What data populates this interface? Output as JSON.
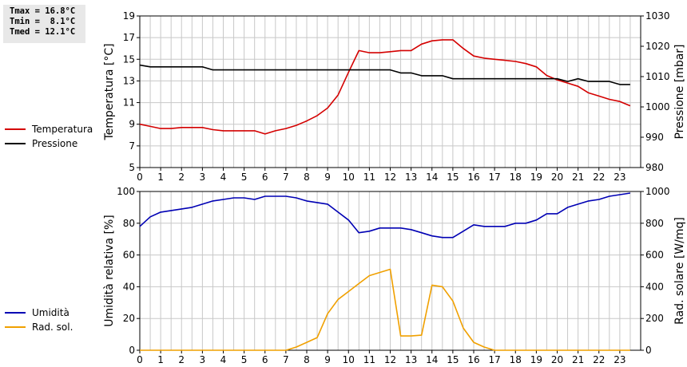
{
  "stats": {
    "tmax": "Tmax = 16.8°C",
    "tmin": "Tmin =  8.1°C",
    "tmed": "Tmed = 12.1°C"
  },
  "colors": {
    "temperatura": "#d40000",
    "pressione": "#000000",
    "umidita": "#0000b4",
    "rad_sol": "#f0a000",
    "grid": "#c8c8c8"
  },
  "chart_data": [
    {
      "type": "line",
      "x_ticks": [
        "0",
        "1",
        "2",
        "3",
        "4",
        "5",
        "6",
        "7",
        "8",
        "9",
        "10",
        "11",
        "12",
        "13",
        "14",
        "15",
        "16",
        "17",
        "18",
        "19",
        "20",
        "21",
        "22",
        "23"
      ],
      "xlim": [
        0,
        24
      ],
      "ylabel": "Temperatura [°C]",
      "y2label": "Pressione [mbar]",
      "ylim": [
        5,
        19
      ],
      "y_ticks": [
        "5",
        "7",
        "9",
        "11",
        "13",
        "15",
        "17",
        "19"
      ],
      "y2lim": [
        980,
        1030
      ],
      "y2_ticks": [
        "980",
        "990",
        "1000",
        "1010",
        "1020",
        "1030"
      ],
      "grid": true,
      "legend": "left",
      "series": [
        {
          "name": "Temperatura",
          "axis": "left",
          "color": "#d40000",
          "x": [
            0,
            0.5,
            1,
            1.5,
            2,
            2.5,
            3,
            3.5,
            4,
            4.5,
            5,
            5.5,
            6,
            6.5,
            7,
            7.5,
            8,
            8.5,
            9,
            9.5,
            10,
            10.5,
            11,
            11.5,
            12,
            12.5,
            13,
            13.5,
            14,
            14.5,
            15,
            15.5,
            16,
            16.5,
            17,
            17.5,
            18,
            18.5,
            19,
            19.5,
            20,
            20.5,
            21,
            21.5,
            22,
            22.5,
            23,
            23.5
          ],
          "values": [
            9.0,
            8.8,
            8.6,
            8.6,
            8.7,
            8.7,
            8.7,
            8.5,
            8.4,
            8.4,
            8.4,
            8.4,
            8.1,
            8.4,
            8.6,
            8.9,
            9.3,
            9.8,
            10.5,
            11.7,
            13.8,
            15.8,
            15.6,
            15.6,
            15.7,
            15.8,
            15.8,
            16.4,
            16.7,
            16.8,
            16.8,
            16.0,
            15.3,
            15.1,
            15.0,
            14.9,
            14.8,
            14.6,
            14.3,
            13.5,
            13.1,
            12.8,
            12.5,
            11.9,
            11.6,
            11.3,
            11.1,
            10.7
          ]
        },
        {
          "name": "Pressione",
          "axis": "right",
          "color": "#000000",
          "x": [
            0,
            0.5,
            1,
            1.5,
            2,
            2.5,
            3,
            3.5,
            4,
            4.5,
            5,
            5.5,
            6,
            6.5,
            7,
            7.5,
            8,
            8.5,
            9,
            9.5,
            10,
            10.5,
            11,
            11.5,
            12,
            12.5,
            13,
            13.5,
            14,
            14.5,
            15,
            15.5,
            16,
            16.5,
            17,
            17.5,
            18,
            18.5,
            19,
            19.5,
            20,
            20.5,
            21,
            21.5,
            22,
            22.5,
            23,
            23.5
          ],
          "values": [
            1013.8,
            1013.2,
            1013.2,
            1013.2,
            1013.2,
            1013.2,
            1013.2,
            1012.2,
            1012.2,
            1012.2,
            1012.2,
            1012.2,
            1012.2,
            1012.2,
            1012.2,
            1012.2,
            1012.2,
            1012.2,
            1012.2,
            1012.2,
            1012.2,
            1012.2,
            1012.2,
            1012.2,
            1012.2,
            1011.2,
            1011.2,
            1010.3,
            1010.3,
            1010.3,
            1009.3,
            1009.3,
            1009.3,
            1009.3,
            1009.3,
            1009.3,
            1009.3,
            1009.3,
            1009.3,
            1009.3,
            1009.3,
            1008.4,
            1009.3,
            1008.4,
            1008.4,
            1008.4,
            1007.4,
            1007.4
          ]
        }
      ]
    },
    {
      "type": "line",
      "x_ticks": [
        "0",
        "1",
        "2",
        "3",
        "4",
        "5",
        "6",
        "7",
        "8",
        "9",
        "10",
        "11",
        "12",
        "13",
        "14",
        "15",
        "16",
        "17",
        "18",
        "19",
        "20",
        "21",
        "22",
        "23"
      ],
      "xlim": [
        0,
        24
      ],
      "ylabel": "Umidità relativa [%]",
      "y2label": "Rad. solare [W/mq]",
      "ylim": [
        0,
        100
      ],
      "y_ticks": [
        "0",
        "20",
        "40",
        "60",
        "80",
        "100"
      ],
      "y2lim": [
        0,
        1000
      ],
      "y2_ticks": [
        "0",
        "200",
        "400",
        "600",
        "800",
        "1000"
      ],
      "grid": true,
      "legend": "left",
      "series": [
        {
          "name": "Umidità",
          "axis": "left",
          "color": "#0000b4",
          "x": [
            0,
            0.5,
            1,
            1.5,
            2,
            2.5,
            3,
            3.5,
            4,
            4.5,
            5,
            5.5,
            6,
            6.5,
            7,
            7.5,
            8,
            8.5,
            9,
            9.5,
            10,
            10.5,
            11,
            11.5,
            12,
            12.5,
            13,
            13.5,
            14,
            14.5,
            15,
            15.5,
            16,
            16.5,
            17,
            17.5,
            18,
            18.5,
            19,
            19.5,
            20,
            20.5,
            21,
            21.5,
            22,
            22.5,
            23,
            23.5
          ],
          "values": [
            78,
            84,
            87,
            88,
            89,
            90,
            92,
            94,
            95,
            96,
            96,
            95,
            97,
            97,
            97,
            96,
            94,
            93,
            92,
            87,
            82,
            74,
            75,
            77,
            77,
            77,
            76,
            74,
            72,
            71,
            71,
            75,
            79,
            78,
            78,
            78,
            80,
            80,
            82,
            86,
            86,
            90,
            92,
            94,
            95,
            97,
            98,
            99
          ]
        },
        {
          "name": "Rad. sol.",
          "axis": "right",
          "color": "#f0a000",
          "x": [
            0,
            0.5,
            1,
            1.5,
            2,
            2.5,
            3,
            3.5,
            4,
            4.5,
            5,
            5.5,
            6,
            6.5,
            7,
            7.5,
            8,
            8.5,
            9,
            9.5,
            10,
            10.5,
            11,
            11.5,
            12,
            12.5,
            13,
            13.5,
            14,
            14.5,
            15,
            15.5,
            16,
            16.5,
            17,
            17.5,
            18,
            18.5,
            19,
            19.5,
            20,
            20.5,
            21,
            21.5,
            22,
            22.5,
            23,
            23.5
          ],
          "values": [
            0,
            0,
            0,
            0,
            0,
            0,
            0,
            0,
            0,
            0,
            0,
            0,
            0,
            0,
            0,
            20,
            50,
            80,
            230,
            320,
            370,
            420,
            470,
            490,
            510,
            90,
            90,
            95,
            410,
            400,
            310,
            140,
            50,
            20,
            0,
            0,
            0,
            0,
            0,
            0,
            0,
            0,
            0,
            0,
            0,
            0,
            0,
            0
          ]
        }
      ]
    }
  ]
}
